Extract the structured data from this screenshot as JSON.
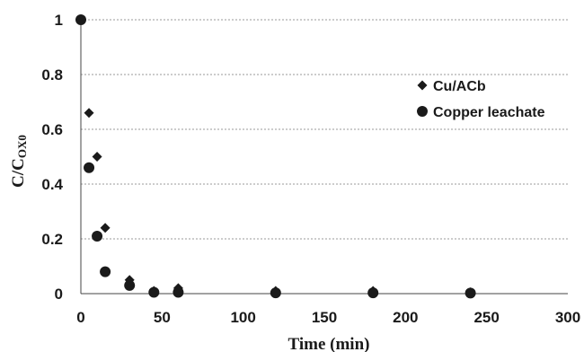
{
  "chart_data": {
    "type": "scatter",
    "xlabel": "Time (min)",
    "ylabel": {
      "main": "C/C",
      "sub": "OX0"
    },
    "xlim": [
      0,
      300
    ],
    "ylim": [
      0,
      1
    ],
    "x_ticks": [
      "0",
      "50",
      "100",
      "150",
      "200",
      "250",
      "300"
    ],
    "y_ticks": [
      "0",
      "0.2",
      "0.4",
      "0.6",
      "0.8",
      "1"
    ],
    "grid": "horizontal",
    "legend_position": "top-right",
    "series": [
      {
        "name": "Cu/ACb",
        "marker": "diamond",
        "color": "#1a1a1a",
        "points": [
          [
            0,
            1
          ],
          [
            5,
            0.66
          ],
          [
            10,
            0.5
          ],
          [
            15,
            0.24
          ],
          [
            30,
            0.05
          ],
          [
            45,
            0.01
          ],
          [
            60,
            0.02
          ],
          [
            120,
            0.01
          ],
          [
            180,
            0.01
          ],
          [
            240,
            0.005
          ]
        ]
      },
      {
        "name": "Copper leachate",
        "marker": "circle",
        "color": "#1a1a1a",
        "points": [
          [
            0,
            1
          ],
          [
            5,
            0.46
          ],
          [
            10,
            0.21
          ],
          [
            15,
            0.08
          ],
          [
            30,
            0.03
          ],
          [
            45,
            0.005
          ],
          [
            60,
            0.005
          ],
          [
            120,
            0.003
          ],
          [
            180,
            0.003
          ],
          [
            240,
            0.002
          ]
        ]
      }
    ]
  }
}
